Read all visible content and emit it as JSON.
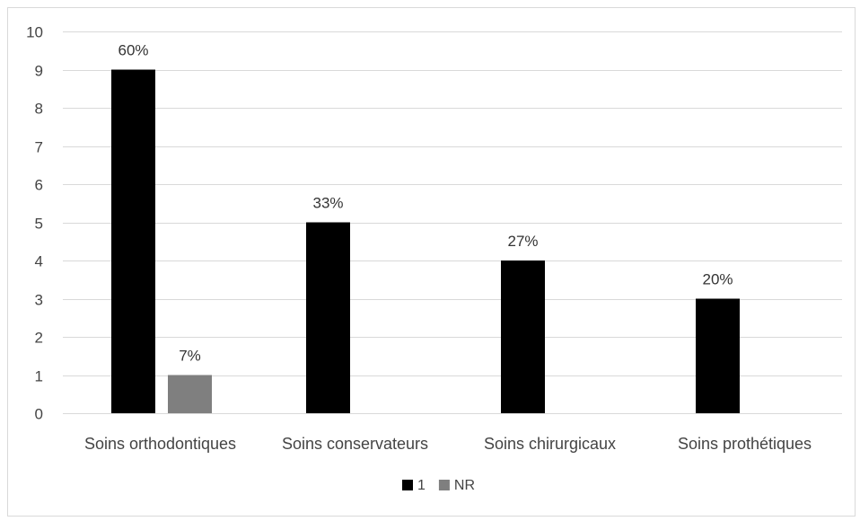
{
  "chart_data": {
    "type": "bar",
    "categories": [
      "Soins orthodontiques",
      "Soins conservateurs",
      "Soins chirurgicaux",
      "Soins prothétiques"
    ],
    "series": [
      {
        "name": "1",
        "values": [
          9,
          5,
          4,
          3
        ],
        "labels": [
          "60%",
          "33%",
          "27%",
          "20%"
        ],
        "color": "#000000"
      },
      {
        "name": "NR",
        "values": [
          1,
          null,
          null,
          null
        ],
        "labels": [
          "7%",
          "",
          "",
          ""
        ],
        "color": "#7f7f7f"
      }
    ],
    "title": "",
    "xlabel": "",
    "ylabel": "",
    "ylim": [
      0,
      10
    ],
    "yticks": [
      "0",
      "1",
      "2",
      "3",
      "4",
      "5",
      "6",
      "7",
      "8",
      "9",
      "10"
    ],
    "grid": true,
    "legend": "bottom"
  }
}
